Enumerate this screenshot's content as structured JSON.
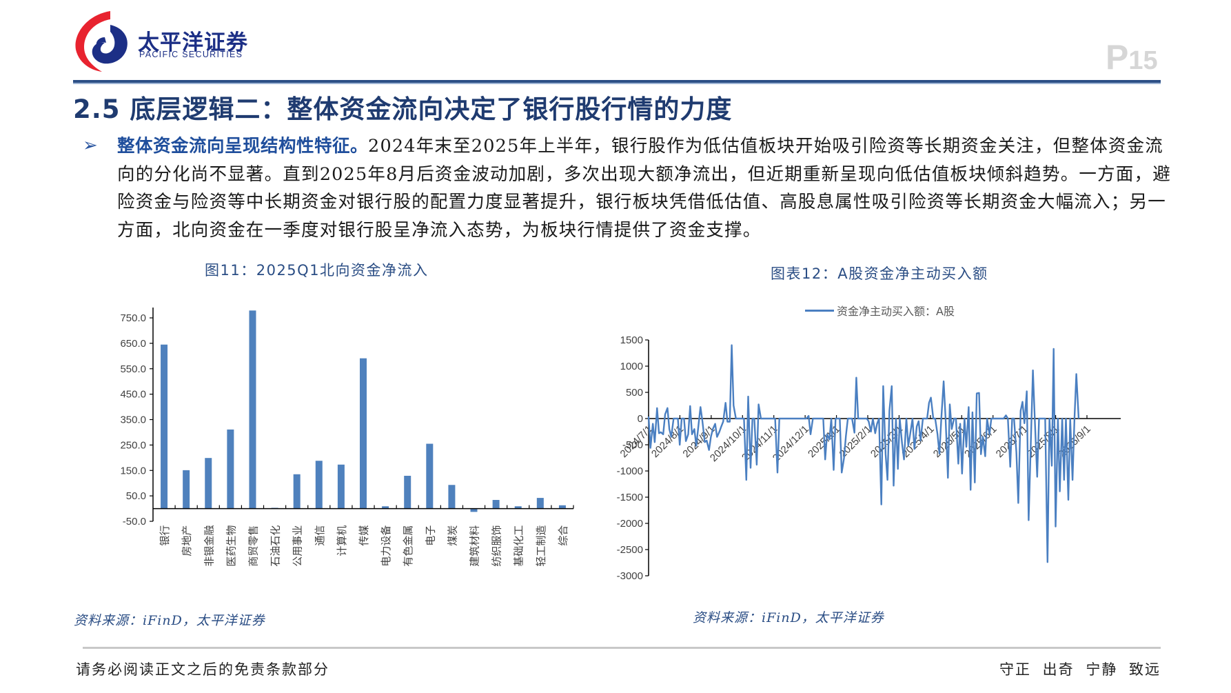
{
  "header": {
    "logo_cn": "太平洋证券",
    "logo_en": "PACIFIC SECURITIES",
    "page_label": "P",
    "page_number": "15"
  },
  "title": "2.5 底层逻辑二：整体资金流向决定了银行股行情的力度",
  "paragraph": {
    "lead": "整体资金流向呈现结构性特征。",
    "body": "2024年末至2025年上半年，银行股作为低估值板块开始吸引险资等长期资金关注，但整体资金流向的分化尚不显著。直到2025年8月后资金波动加剧，多次出现大额净流出，但近期重新呈现向低估值板块倾斜趋势。一方面，避险资金与险资等中长期资金对银行股的配置力度显著提升，银行板块凭借低估值、高股息属性吸引险资等长期资金大幅流入；另一方面，北向资金在一季度对银行股呈净流入态势，为板块行情提供了资金支撑。"
  },
  "figures": {
    "left": {
      "title": "图11：2025Q1北向资金净流入",
      "source": "资料来源：iFinD，太平洋证券"
    },
    "right": {
      "title": "图表12：A股资金净主动买入额",
      "legend": "资金净主动买入额：A股",
      "source": "资料来源：iFinD，太平洋证券"
    }
  },
  "footer": {
    "disclaimer": "请务必阅读正文之后的免责条款部分",
    "motto": "守正 出奇 宁静 致远"
  },
  "colors": {
    "brand_blue": "#1f3b70",
    "bar_blue": "#4f81bd",
    "line_blue": "#4a7fc1",
    "logo_red": "#e8232f",
    "page_num_gray": "#d6d6d6"
  },
  "chart_data": [
    {
      "type": "bar",
      "title": "图11：2025Q1北向资金净流入",
      "xlabel": "",
      "ylabel": "",
      "ylim": [
        -50,
        800
      ],
      "yticks": [
        "-50.0",
        "50.0",
        "150.0",
        "250.0",
        "350.0",
        "450.0",
        "550.0",
        "650.0",
        "750.0"
      ],
      "grid": false,
      "categories": [
        "银行",
        "房地产",
        "非银金融",
        "医药生物",
        "商贸零售",
        "石油石化",
        "公用事业",
        "通信",
        "计算机",
        "传媒",
        "电力设备",
        "有色金属",
        "电子",
        "煤炭",
        "建筑材料",
        "纺织服饰",
        "基础化工",
        "轻工制造",
        "综合"
      ],
      "values": [
        645,
        151,
        199,
        311,
        779,
        3,
        135,
        188,
        173,
        591,
        9,
        129,
        255,
        93,
        -13,
        34,
        9,
        42,
        13
      ]
    },
    {
      "type": "line",
      "title": "图表12：A股资金净主动买入额",
      "legend": [
        "资金净主动买入额：A股"
      ],
      "legend_position": "top",
      "ylim": [
        -3000,
        1500
      ],
      "yticks": [
        "-3000",
        "-2500",
        "-2000",
        "-1500",
        "-1000",
        "-500",
        "0",
        "500",
        "1000",
        "1500"
      ],
      "xticks": [
        "2024/7/1",
        "2024/8/1",
        "2024/9/1",
        "2024/10/1",
        "2024/11/1",
        "2024/12/1",
        "2025/1/1",
        "2025/2/1",
        "2025/3/1",
        "2025/4/1",
        "2025/5/1",
        "2025/6/1",
        "2025/7/1",
        "2025/8/1",
        "2025/9/1"
      ],
      "grid": false,
      "series": [
        {
          "name": "资金净主动买入额：A股",
          "x_frac": [
            0.0,
            0.004,
            0.009,
            0.013,
            0.018,
            0.022,
            0.026,
            0.031,
            0.035,
            0.04,
            0.044,
            0.048,
            0.053,
            0.057,
            0.062,
            0.066,
            0.07,
            0.075,
            0.079,
            0.084,
            0.088,
            0.092,
            0.097,
            0.101,
            0.106,
            0.11,
            0.114,
            0.119,
            0.123,
            0.128,
            0.132,
            0.136,
            0.141,
            0.145,
            0.15,
            0.154,
            0.158,
            0.163,
            0.167,
            0.172,
            0.176,
            0.18,
            0.185,
            0.189,
            0.194,
            0.198,
            0.202,
            0.207,
            0.211,
            0.216,
            0.22,
            0.224,
            0.229,
            0.233,
            0.238,
            0.242,
            0.246,
            0.251,
            0.255,
            0.26,
            0.264,
            0.268,
            0.273,
            0.277,
            0.282,
            0.286,
            0.29,
            0.295,
            0.299,
            0.304,
            0.308,
            0.312,
            0.317,
            0.321,
            0.326,
            0.33,
            0.334,
            0.339,
            0.343,
            0.348,
            0.352,
            0.356,
            0.361,
            0.365,
            0.37,
            0.374,
            0.378,
            0.383,
            0.387,
            0.392,
            0.396,
            0.4,
            0.405,
            0.409,
            0.414,
            0.418,
            0.422,
            0.427,
            0.431,
            0.436,
            0.44,
            0.444,
            0.449,
            0.453,
            0.458,
            0.462,
            0.466,
            0.471,
            0.475,
            0.48,
            0.484,
            0.488,
            0.493,
            0.497,
            0.502,
            0.506,
            0.51,
            0.515,
            0.519,
            0.524,
            0.528,
            0.532,
            0.537,
            0.541,
            0.546,
            0.55,
            0.554,
            0.559,
            0.563,
            0.568,
            0.572,
            0.576,
            0.581,
            0.585,
            0.59,
            0.594,
            0.598,
            0.603,
            0.607,
            0.612,
            0.616,
            0.62,
            0.625,
            0.629,
            0.634,
            0.638,
            0.642,
            0.647,
            0.651,
            0.656,
            0.66,
            0.664,
            0.669,
            0.673,
            0.678,
            0.682,
            0.686,
            0.691,
            0.695,
            0.7,
            0.704,
            0.708,
            0.713,
            0.717,
            0.722,
            0.726,
            0.73,
            0.735,
            0.739,
            0.744,
            0.748,
            0.752,
            0.757,
            0.761,
            0.766,
            0.77,
            0.774,
            0.779,
            0.783,
            0.788,
            0.792,
            0.796,
            0.801,
            0.805,
            0.81,
            0.814,
            0.818,
            0.823,
            0.827,
            0.832,
            0.836,
            0.84,
            0.845,
            0.849,
            0.854,
            0.858,
            0.862,
            0.867,
            0.871,
            0.876,
            0.88,
            0.884,
            0.889,
            0.893,
            0.898,
            0.902,
            0.906,
            0.911,
            0.915,
            0.92,
            0.924,
            0.928,
            0.933,
            0.937,
            0.942,
            0.946,
            0.95,
            0.955,
            0.959,
            0.964,
            0.968,
            0.972,
            0.977,
            0.981,
            0.986,
            0.99,
            0.994,
            1.0
          ],
          "values": [
            40,
            -560,
            -100,
            -450,
            200,
            -280,
            -260,
            -300,
            80,
            200,
            -200,
            -350,
            0,
            0,
            0,
            -500,
            0,
            0,
            -430,
            -300,
            240,
            -300,
            -200,
            -520,
            -100,
            220,
            -50,
            -450,
            -420,
            -600,
            -350,
            -200,
            -100,
            -350,
            -250,
            -150,
            -60,
            300,
            -60,
            -60,
            1400,
            250,
            0,
            0,
            0,
            0,
            0,
            -1170,
            420,
            -940,
            0,
            0,
            -880,
            270,
            0,
            0,
            0,
            0,
            0,
            0,
            0,
            0,
            -1030,
            0,
            0,
            0,
            0,
            0,
            0,
            0,
            0,
            0,
            0,
            0,
            0,
            0,
            0,
            50,
            -300,
            0,
            0,
            0,
            0,
            0,
            0,
            -780,
            -300,
            -400,
            0,
            -980,
            0,
            0,
            0,
            -1030,
            -750,
            -330,
            0,
            0,
            0,
            -270,
            780,
            0,
            0,
            0,
            0,
            0,
            -50,
            -250,
            0,
            -280,
            -100,
            0,
            -1640,
            620,
            -680,
            -1170,
            150,
            620,
            -1280,
            0,
            -960,
            0,
            -480,
            -780,
            0,
            -520,
            -300,
            0,
            -580,
            -150,
            -50,
            -420,
            0,
            0,
            0,
            300,
            400,
            0,
            0,
            -300,
            -670,
            0,
            710,
            0,
            -1130,
            270,
            -200,
            0,
            0,
            -860,
            -100,
            -1050,
            0,
            -540,
            220,
            -1360,
            120,
            -1220,
            480,
            490,
            -680,
            -350,
            -720,
            0,
            -300,
            0,
            0,
            0,
            0,
            0,
            0,
            0,
            60,
            0,
            -920,
            0,
            0,
            -640,
            -1610,
            150,
            320,
            -90,
            520,
            -1940,
            -310,
            920,
            0,
            -1110,
            0,
            0,
            0,
            0,
            -2740,
            0,
            -900,
            1330,
            -2060,
            0,
            -1390,
            0,
            -1170,
            0,
            -1550,
            0,
            -1170,
            0,
            850,
            0
          ]
        }
      ]
    }
  ]
}
